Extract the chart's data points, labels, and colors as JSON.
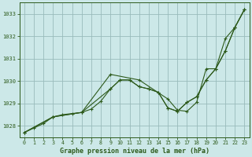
{
  "bg_color": "#cce8e8",
  "grid_color": "#99bbbb",
  "line_color": "#2d5a1b",
  "xlabel": "Graphe pression niveau de la mer (hPa)",
  "xlim": [
    -0.5,
    23.5
  ],
  "ylim": [
    1027.5,
    1033.5
  ],
  "yticks": [
    1028,
    1029,
    1030,
    1031,
    1032,
    1033
  ],
  "xticks": [
    0,
    1,
    2,
    3,
    4,
    5,
    6,
    7,
    8,
    9,
    10,
    11,
    12,
    13,
    14,
    15,
    16,
    17,
    18,
    19,
    20,
    21,
    22,
    23
  ],
  "series1_x": [
    0,
    1,
    2,
    3,
    4,
    5,
    6,
    7,
    8,
    9,
    10,
    11,
    12,
    13,
    14,
    15,
    16,
    17,
    18,
    19,
    20,
    21,
    22,
    23
  ],
  "series1_y": [
    1027.7,
    1027.9,
    1028.1,
    1028.4,
    1028.5,
    1028.55,
    1028.6,
    1028.75,
    1029.1,
    1029.65,
    1030.05,
    1030.05,
    1029.75,
    1029.65,
    1029.5,
    1028.8,
    1028.65,
    1029.05,
    1029.3,
    1030.05,
    1030.55,
    1031.35,
    1032.4,
    1033.2
  ],
  "series2_x": [
    0,
    3,
    6,
    9,
    12,
    15,
    16,
    17,
    18,
    19,
    20,
    21,
    22,
    23
  ],
  "series2_y": [
    1027.7,
    1028.4,
    1028.6,
    1030.3,
    1030.05,
    1029.2,
    1028.7,
    1028.65,
    1029.05,
    1030.55,
    1030.55,
    1031.9,
    1032.4,
    1033.2
  ],
  "series3_x": [
    0,
    3,
    6,
    9,
    10,
    11,
    12,
    13,
    14,
    15,
    16,
    17,
    18,
    19,
    20,
    21,
    22,
    23
  ],
  "series3_y": [
    1027.7,
    1028.4,
    1028.6,
    1029.65,
    1030.05,
    1030.05,
    1029.75,
    1029.65,
    1029.5,
    1028.8,
    1028.65,
    1029.05,
    1029.3,
    1030.05,
    1030.55,
    1031.35,
    1032.4,
    1033.2
  ]
}
